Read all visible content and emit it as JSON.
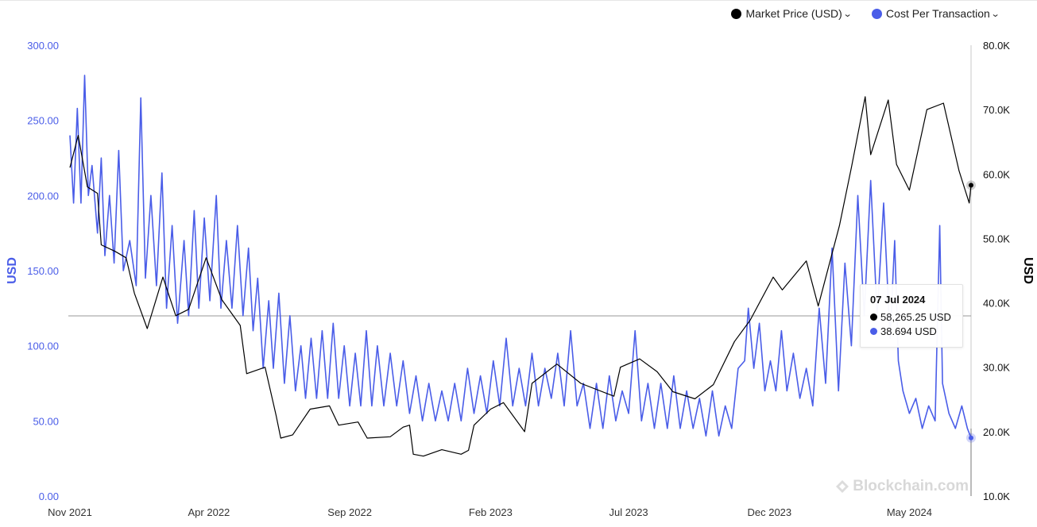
{
  "legend": [
    {
      "label": "Market Price (USD)",
      "color": "#000000"
    },
    {
      "label": "Cost Per Transaction",
      "color": "#4a5de8"
    }
  ],
  "tooltip": {
    "date": "07 Jul 2024",
    "market_price": "58,265.25 USD",
    "cost_per_tx": "38.694 USD"
  },
  "watermark": "Blockchain.com",
  "chart_data": {
    "type": "line",
    "x_tick_labels": [
      "Nov 2021",
      "Apr 2022",
      "Sep 2022",
      "Feb 2023",
      "Jul 2023",
      "Dec 2023",
      "May 2024"
    ],
    "x_range": [
      "2021-11-01",
      "2024-07-07"
    ],
    "y_left": {
      "label": "USD",
      "ticks": [
        "0.00",
        "50.00",
        "100.00",
        "150.00",
        "200.00",
        "250.00",
        "300.00"
      ],
      "range": [
        0,
        300
      ],
      "color": "#4a5de8"
    },
    "y_right": {
      "label": "USD",
      "ticks": [
        "10.0K",
        "20.0K",
        "30.0K",
        "40.0K",
        "50.0K",
        "60.0K",
        "70.0K",
        "80.0K"
      ],
      "range": [
        10000,
        80000
      ],
      "color": "#000000"
    },
    "crosshair_date": "2024-07-07",
    "series": [
      {
        "name": "Market Price (USD)",
        "axis": "right",
        "color": "#000000",
        "points": [
          [
            "2021-11-01",
            61000
          ],
          [
            "2021-11-10",
            66000
          ],
          [
            "2021-11-20",
            58000
          ],
          [
            "2021-12-01",
            57000
          ],
          [
            "2021-12-05",
            49000
          ],
          [
            "2021-12-20",
            48000
          ],
          [
            "2022-01-01",
            47000
          ],
          [
            "2022-01-10",
            41500
          ],
          [
            "2022-01-24",
            36000
          ],
          [
            "2022-02-10",
            44000
          ],
          [
            "2022-02-24",
            38000
          ],
          [
            "2022-03-10",
            39000
          ],
          [
            "2022-03-29",
            47000
          ],
          [
            "2022-04-15",
            40500
          ],
          [
            "2022-05-05",
            36500
          ],
          [
            "2022-05-12",
            29000
          ],
          [
            "2022-06-01",
            30000
          ],
          [
            "2022-06-13",
            22500
          ],
          [
            "2022-06-18",
            19000
          ],
          [
            "2022-07-01",
            19500
          ],
          [
            "2022-07-20",
            23500
          ],
          [
            "2022-08-10",
            24000
          ],
          [
            "2022-08-20",
            21000
          ],
          [
            "2022-09-10",
            21500
          ],
          [
            "2022-09-20",
            19000
          ],
          [
            "2022-10-15",
            19200
          ],
          [
            "2022-10-29",
            20700
          ],
          [
            "2022-11-05",
            21000
          ],
          [
            "2022-11-09",
            16500
          ],
          [
            "2022-11-20",
            16200
          ],
          [
            "2022-12-10",
            17200
          ],
          [
            "2022-12-31",
            16500
          ],
          [
            "2023-01-08",
            17100
          ],
          [
            "2023-01-14",
            21000
          ],
          [
            "2023-02-01",
            23500
          ],
          [
            "2023-02-15",
            24500
          ],
          [
            "2023-03-10",
            20000
          ],
          [
            "2023-03-18",
            27500
          ],
          [
            "2023-04-14",
            30500
          ],
          [
            "2023-05-10",
            27500
          ],
          [
            "2023-06-15",
            25500
          ],
          [
            "2023-06-22",
            30000
          ],
          [
            "2023-07-13",
            31300
          ],
          [
            "2023-08-01",
            29300
          ],
          [
            "2023-08-18",
            26200
          ],
          [
            "2023-09-11",
            25100
          ],
          [
            "2023-10-01",
            27300
          ],
          [
            "2023-10-24",
            34000
          ],
          [
            "2023-11-10",
            37300
          ],
          [
            "2023-12-05",
            44000
          ],
          [
            "2023-12-15",
            42000
          ],
          [
            "2024-01-10",
            46500
          ],
          [
            "2024-01-23",
            39500
          ],
          [
            "2024-02-15",
            52000
          ],
          [
            "2024-02-28",
            61000
          ],
          [
            "2024-03-14",
            72000
          ],
          [
            "2024-03-20",
            63000
          ],
          [
            "2024-04-08",
            71500
          ],
          [
            "2024-04-17",
            61500
          ],
          [
            "2024-05-01",
            57500
          ],
          [
            "2024-05-20",
            70000
          ],
          [
            "2024-06-07",
            71000
          ],
          [
            "2024-06-24",
            60500
          ],
          [
            "2024-07-05",
            55500
          ],
          [
            "2024-07-07",
            58265.25
          ]
        ]
      },
      {
        "name": "Cost Per Transaction",
        "axis": "left",
        "color": "#4a5de8",
        "points": [
          [
            "2021-11-01",
            240
          ],
          [
            "2021-11-05",
            195
          ],
          [
            "2021-11-09",
            258
          ],
          [
            "2021-11-13",
            195
          ],
          [
            "2021-11-17",
            280
          ],
          [
            "2021-11-21",
            200
          ],
          [
            "2021-11-25",
            220
          ],
          [
            "2021-12-01",
            175
          ],
          [
            "2021-12-05",
            225
          ],
          [
            "2021-12-09",
            160
          ],
          [
            "2021-12-14",
            200
          ],
          [
            "2021-12-19",
            155
          ],
          [
            "2021-12-24",
            230
          ],
          [
            "2021-12-29",
            150
          ],
          [
            "2022-01-05",
            170
          ],
          [
            "2022-01-12",
            140
          ],
          [
            "2022-01-17",
            265
          ],
          [
            "2022-01-22",
            145
          ],
          [
            "2022-01-28",
            200
          ],
          [
            "2022-02-03",
            140
          ],
          [
            "2022-02-09",
            215
          ],
          [
            "2022-02-14",
            125
          ],
          [
            "2022-02-20",
            180
          ],
          [
            "2022-02-26",
            115
          ],
          [
            "2022-03-05",
            170
          ],
          [
            "2022-03-10",
            120
          ],
          [
            "2022-03-16",
            190
          ],
          [
            "2022-03-21",
            125
          ],
          [
            "2022-03-27",
            185
          ],
          [
            "2022-04-02",
            130
          ],
          [
            "2022-04-09",
            200
          ],
          [
            "2022-04-14",
            125
          ],
          [
            "2022-04-20",
            170
          ],
          [
            "2022-04-26",
            125
          ],
          [
            "2022-05-02",
            180
          ],
          [
            "2022-05-08",
            120
          ],
          [
            "2022-05-14",
            165
          ],
          [
            "2022-05-19",
            110
          ],
          [
            "2022-05-24",
            145
          ],
          [
            "2022-05-30",
            85
          ],
          [
            "2022-06-05",
            130
          ],
          [
            "2022-06-10",
            85
          ],
          [
            "2022-06-16",
            135
          ],
          [
            "2022-06-22",
            75
          ],
          [
            "2022-06-28",
            120
          ],
          [
            "2022-07-04",
            70
          ],
          [
            "2022-07-10",
            100
          ],
          [
            "2022-07-15",
            65
          ],
          [
            "2022-07-21",
            105
          ],
          [
            "2022-07-27",
            65
          ],
          [
            "2022-08-02",
            110
          ],
          [
            "2022-08-08",
            65
          ],
          [
            "2022-08-14",
            115
          ],
          [
            "2022-08-20",
            65
          ],
          [
            "2022-08-26",
            100
          ],
          [
            "2022-09-01",
            60
          ],
          [
            "2022-09-07",
            95
          ],
          [
            "2022-09-13",
            60
          ],
          [
            "2022-09-19",
            110
          ],
          [
            "2022-09-25",
            60
          ],
          [
            "2022-10-01",
            100
          ],
          [
            "2022-10-08",
            60
          ],
          [
            "2022-10-15",
            95
          ],
          [
            "2022-10-22",
            60
          ],
          [
            "2022-10-29",
            90
          ],
          [
            "2022-11-05",
            55
          ],
          [
            "2022-11-12",
            80
          ],
          [
            "2022-11-19",
            50
          ],
          [
            "2022-11-26",
            75
          ],
          [
            "2022-12-03",
            50
          ],
          [
            "2022-12-10",
            70
          ],
          [
            "2022-12-17",
            50
          ],
          [
            "2022-12-24",
            75
          ],
          [
            "2022-12-31",
            50
          ],
          [
            "2023-01-07",
            85
          ],
          [
            "2023-01-14",
            55
          ],
          [
            "2023-01-21",
            80
          ],
          [
            "2023-01-28",
            55
          ],
          [
            "2023-02-04",
            90
          ],
          [
            "2023-02-11",
            60
          ],
          [
            "2023-02-18",
            105
          ],
          [
            "2023-02-25",
            60
          ],
          [
            "2023-03-04",
            85
          ],
          [
            "2023-03-11",
            60
          ],
          [
            "2023-03-18",
            95
          ],
          [
            "2023-03-25",
            60
          ],
          [
            "2023-04-01",
            85
          ],
          [
            "2023-04-08",
            65
          ],
          [
            "2023-04-15",
            95
          ],
          [
            "2023-04-22",
            60
          ],
          [
            "2023-04-29",
            110
          ],
          [
            "2023-05-06",
            60
          ],
          [
            "2023-05-13",
            75
          ],
          [
            "2023-05-20",
            45
          ],
          [
            "2023-05-27",
            75
          ],
          [
            "2023-06-03",
            45
          ],
          [
            "2023-06-10",
            80
          ],
          [
            "2023-06-17",
            50
          ],
          [
            "2023-06-24",
            70
          ],
          [
            "2023-07-01",
            55
          ],
          [
            "2023-07-08",
            110
          ],
          [
            "2023-07-15",
            50
          ],
          [
            "2023-07-22",
            75
          ],
          [
            "2023-07-29",
            45
          ],
          [
            "2023-08-05",
            75
          ],
          [
            "2023-08-12",
            45
          ],
          [
            "2023-08-19",
            80
          ],
          [
            "2023-08-26",
            45
          ],
          [
            "2023-09-02",
            70
          ],
          [
            "2023-09-09",
            45
          ],
          [
            "2023-09-16",
            65
          ],
          [
            "2023-09-23",
            40
          ],
          [
            "2023-09-30",
            70
          ],
          [
            "2023-10-07",
            40
          ],
          [
            "2023-10-14",
            60
          ],
          [
            "2023-10-21",
            45
          ],
          [
            "2023-10-28",
            85
          ],
          [
            "2023-11-04",
            90
          ],
          [
            "2023-11-08",
            125
          ],
          [
            "2023-11-14",
            85
          ],
          [
            "2023-11-20",
            115
          ],
          [
            "2023-11-26",
            70
          ],
          [
            "2023-12-02",
            90
          ],
          [
            "2023-12-08",
            70
          ],
          [
            "2023-12-14",
            110
          ],
          [
            "2023-12-20",
            70
          ],
          [
            "2023-12-27",
            95
          ],
          [
            "2024-01-03",
            65
          ],
          [
            "2024-01-10",
            85
          ],
          [
            "2024-01-17",
            60
          ],
          [
            "2024-01-24",
            125
          ],
          [
            "2024-01-31",
            75
          ],
          [
            "2024-02-07",
            165
          ],
          [
            "2024-02-14",
            70
          ],
          [
            "2024-02-21",
            155
          ],
          [
            "2024-02-28",
            100
          ],
          [
            "2024-03-06",
            200
          ],
          [
            "2024-03-13",
            120
          ],
          [
            "2024-03-20",
            210
          ],
          [
            "2024-03-27",
            120
          ],
          [
            "2024-04-03",
            195
          ],
          [
            "2024-04-10",
            105
          ],
          [
            "2024-04-15",
            170
          ],
          [
            "2024-04-19",
            90
          ],
          [
            "2024-04-24",
            70
          ],
          [
            "2024-05-01",
            55
          ],
          [
            "2024-05-08",
            65
          ],
          [
            "2024-05-15",
            45
          ],
          [
            "2024-05-22",
            60
          ],
          [
            "2024-05-29",
            50
          ],
          [
            "2024-06-03",
            180
          ],
          [
            "2024-06-06",
            75
          ],
          [
            "2024-06-13",
            55
          ],
          [
            "2024-06-20",
            45
          ],
          [
            "2024-06-27",
            60
          ],
          [
            "2024-07-03",
            45
          ],
          [
            "2024-07-07",
            38.694
          ]
        ]
      }
    ]
  }
}
